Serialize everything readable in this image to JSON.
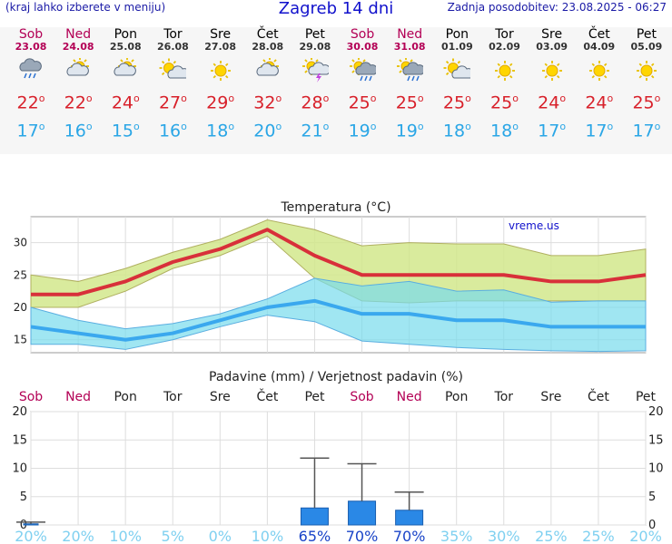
{
  "header": {
    "menu_hint": "(kraj lahko izberete v meniju)",
    "title": "Zagreb 14 dni",
    "updated": "Zadnja posodobitev: 23.08.2025 - 06:27"
  },
  "colors": {
    "accent": "#1111cc",
    "weekend": "#b30055",
    "max_temp": "#d8202a",
    "min_temp": "#2aa6e6",
    "bar": "#2a88e6"
  },
  "days": [
    {
      "name": "Sob",
      "date": "23.08",
      "weekend": true,
      "icon": "cloud-rain-icon",
      "tmax": "22",
      "tmin": "17"
    },
    {
      "name": "Ned",
      "date": "24.08",
      "weekend": true,
      "icon": "partly-cloudy-icon",
      "tmax": "22",
      "tmin": "16"
    },
    {
      "name": "Pon",
      "date": "25.08",
      "weekend": false,
      "icon": "partly-cloudy-icon",
      "tmax": "24",
      "tmin": "15"
    },
    {
      "name": "Tor",
      "date": "26.08",
      "weekend": false,
      "icon": "partly-sunny-icon",
      "tmax": "27",
      "tmin": "16"
    },
    {
      "name": "Sre",
      "date": "27.08",
      "weekend": false,
      "icon": "sun-icon",
      "tmax": "29",
      "tmin": "18"
    },
    {
      "name": "Čet",
      "date": "28.08",
      "weekend": false,
      "icon": "partly-cloudy-icon",
      "tmax": "32",
      "tmin": "20"
    },
    {
      "name": "Pet",
      "date": "29.08",
      "weekend": false,
      "icon": "thunderstorm-icon",
      "tmax": "28",
      "tmin": "21"
    },
    {
      "name": "Sob",
      "date": "30.08",
      "weekend": true,
      "icon": "sun-cloud-rain-icon",
      "tmax": "25",
      "tmin": "19"
    },
    {
      "name": "Ned",
      "date": "31.08",
      "weekend": true,
      "icon": "sun-cloud-rain-icon",
      "tmax": "25",
      "tmin": "19"
    },
    {
      "name": "Pon",
      "date": "01.09",
      "weekend": false,
      "icon": "partly-sunny-icon",
      "tmax": "25",
      "tmin": "18"
    },
    {
      "name": "Tor",
      "date": "02.09",
      "weekend": false,
      "icon": "sun-icon",
      "tmax": "25",
      "tmin": "18"
    },
    {
      "name": "Sre",
      "date": "03.09",
      "weekend": false,
      "icon": "sun-icon",
      "tmax": "24",
      "tmin": "17"
    },
    {
      "name": "Čet",
      "date": "04.09",
      "weekend": false,
      "icon": "sun-icon",
      "tmax": "24",
      "tmin": "17"
    },
    {
      "name": "Pet",
      "date": "05.09",
      "weekend": false,
      "icon": "sun-icon",
      "tmax": "25",
      "tmin": "17"
    }
  ],
  "chart_data": [
    {
      "type": "line",
      "title": "Temperatura (°C)",
      "watermark": "vreme.us",
      "categories": [
        "Sob",
        "Ned",
        "Pon",
        "Tor",
        "Sre",
        "Čet",
        "Pet",
        "Sob",
        "Ned",
        "Pon",
        "Tor",
        "Sre",
        "Čet",
        "Pet"
      ],
      "ylim": [
        13,
        34
      ],
      "yticks": [
        15,
        20,
        25,
        30
      ],
      "grid": true,
      "series": [
        {
          "role": "max",
          "color": "#d8303a",
          "values": [
            22,
            22,
            24,
            27,
            29,
            32,
            28,
            25,
            25,
            25,
            25,
            24,
            24,
            25
          ]
        },
        {
          "role": "min",
          "color": "#3aa8ee",
          "values": [
            17,
            16,
            15,
            16,
            18,
            20,
            21,
            19,
            19,
            18,
            18,
            17,
            17,
            17
          ]
        }
      ],
      "max_band": {
        "upper": [
          25,
          24,
          26,
          28.5,
          30.5,
          33.5,
          32,
          29.5,
          30,
          29.8,
          29.8,
          28,
          28,
          29
        ],
        "lower": [
          20,
          20,
          22.5,
          26,
          28,
          31,
          24.5,
          21,
          20.7,
          21,
          21,
          21,
          21,
          21
        ]
      },
      "min_band": {
        "upper": [
          20,
          18,
          16.7,
          17.5,
          19,
          21.3,
          24.5,
          23.3,
          24,
          22.5,
          22.7,
          20.8,
          21,
          21
        ],
        "lower": [
          14.3,
          14.3,
          13.5,
          15,
          17,
          18.8,
          17.8,
          14.8,
          14.3,
          13.8,
          13.5,
          13.3,
          13.2,
          13.3
        ]
      }
    },
    {
      "type": "bar",
      "title": "Padavine (mm) / Verjetnost padavin (%)",
      "categories": [
        "Sob",
        "Ned",
        "Pon",
        "Tor",
        "Sre",
        "Čet",
        "Pet",
        "Sob",
        "Ned",
        "Pon",
        "Tor",
        "Sre",
        "Čet",
        "Pet"
      ],
      "ylim": [
        0,
        20
      ],
      "yticks": [
        0,
        5,
        10,
        15,
        20
      ],
      "grid": true,
      "values": [
        0.2,
        0,
        0,
        0,
        0,
        0,
        3.0,
        4.2,
        2.6,
        0,
        0,
        0,
        0,
        0
      ],
      "error_max": [
        0.5,
        0,
        0,
        0,
        0,
        0,
        11.8,
        10.8,
        5.8,
        0,
        0,
        0,
        0,
        0
      ],
      "probability": [
        "20%",
        "20%",
        "10%",
        "5%",
        "0%",
        "10%",
        "65%",
        "70%",
        "70%",
        "35%",
        "30%",
        "25%",
        "25%",
        "20%"
      ]
    }
  ]
}
